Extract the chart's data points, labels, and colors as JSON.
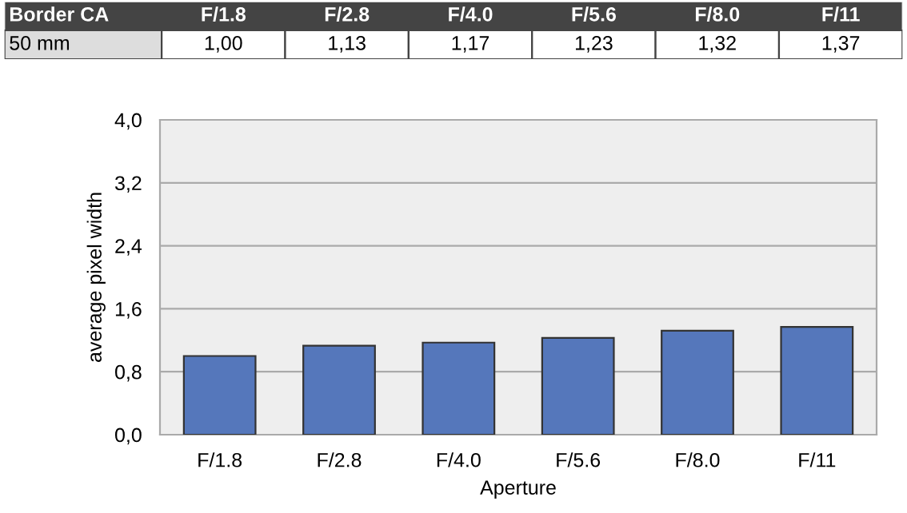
{
  "chart_data": {
    "type": "bar",
    "title": "Border CA",
    "xlabel": "Aperture",
    "ylabel": "average pixel width",
    "categories": [
      "F/1.8",
      "F/2.8",
      "F/4.0",
      "F/5.6",
      "F/8.0",
      "F/11"
    ],
    "series": [
      {
        "name": "50 mm",
        "color": "#5577bb",
        "values": [
          1.0,
          1.13,
          1.17,
          1.23,
          1.32,
          1.37
        ],
        "value_labels": [
          "1,00",
          "1,13",
          "1,17",
          "1,23",
          "1,32",
          "1,37"
        ]
      }
    ],
    "ylim": [
      0,
      4
    ],
    "yticks": [
      {
        "value": 0,
        "label": "0,0"
      },
      {
        "value": 0.8,
        "label": "0,8"
      },
      {
        "value": 1.6,
        "label": "1,6"
      },
      {
        "value": 2.4,
        "label": "2,4"
      },
      {
        "value": 3.2,
        "label": "3,2"
      },
      {
        "value": 4.0,
        "label": "4,0"
      }
    ],
    "grid": "y",
    "legend": false
  }
}
